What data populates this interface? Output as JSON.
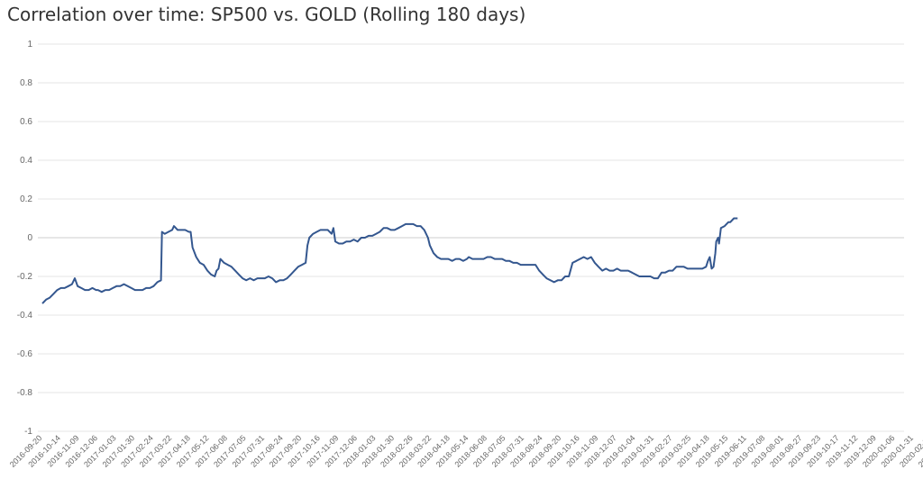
{
  "title": "Correlation over time: SP500 vs. GOLD (Rolling 180 days)",
  "colors": {
    "series": "#34578f",
    "grid": "#e6e6e6",
    "text": "#666666"
  },
  "chart_data": {
    "type": "line",
    "title": "Correlation over time: SP500 vs. GOLD (Rolling 180 days)",
    "xlabel": "",
    "ylabel": "",
    "ylim": [
      -1,
      1
    ],
    "yticks": [
      1,
      0.8,
      0.6,
      0.4,
      0.2,
      0,
      -0.2,
      -0.4,
      -0.6,
      -0.8,
      -1
    ],
    "ytick_labels": [
      "1",
      "0.8",
      "0.6",
      "0.4",
      "0.2",
      "0",
      "-0.2",
      "-0.4",
      "-0.6",
      "-0.8",
      "-1"
    ],
    "grid": true,
    "legend": "none",
    "categories": [
      "2016-09-20",
      "2016-10-14",
      "2016-11-09",
      "2016-12-06",
      "2017-01-03",
      "2017-01-30",
      "2017-02-24",
      "2017-03-22",
      "2017-04-18",
      "2017-05-12",
      "2017-06-08",
      "2017-07-05",
      "2017-07-31",
      "2017-08-24",
      "2017-09-20",
      "2017-10-16",
      "2017-11-09",
      "2017-12-06",
      "2018-01-03",
      "2018-01-30",
      "2018-02-26",
      "2018-03-22",
      "2018-04-18",
      "2018-05-14",
      "2018-06-08",
      "2018-07-05",
      "2018-07-31",
      "2018-08-24",
      "2018-09-20",
      "2018-10-16",
      "2018-11-09",
      "2018-12-07",
      "2019-01-04",
      "2019-01-31",
      "2019-02-27",
      "2019-03-25",
      "2019-04-18",
      "2019-05-15",
      "2019-06-11",
      "2019-07-08",
      "2019-08-01",
      "2019-08-27",
      "2019-09-23",
      "2019-10-17",
      "2019-11-12",
      "2019-12-09",
      "2020-01-06",
      "2020-01-31",
      "2020-02-27",
      "2020-03-24"
    ],
    "series": [
      {
        "color": "#34578f",
        "points": [
          [
            0,
            -0.34
          ],
          [
            0.2,
            -0.32
          ],
          [
            0.4,
            -0.31
          ],
          [
            0.6,
            -0.29
          ],
          [
            0.8,
            -0.27
          ],
          [
            1.0,
            -0.26
          ],
          [
            1.2,
            -0.26
          ],
          [
            1.4,
            -0.25
          ],
          [
            1.6,
            -0.24
          ],
          [
            1.75,
            -0.21
          ],
          [
            1.9,
            -0.25
          ],
          [
            2.1,
            -0.26
          ],
          [
            2.3,
            -0.27
          ],
          [
            2.5,
            -0.27
          ],
          [
            2.7,
            -0.26
          ],
          [
            2.9,
            -0.27
          ],
          [
            3.0,
            -0.27
          ],
          [
            3.2,
            -0.28
          ],
          [
            3.4,
            -0.27
          ],
          [
            3.6,
            -0.27
          ],
          [
            3.8,
            -0.26
          ],
          [
            4.0,
            -0.25
          ],
          [
            4.2,
            -0.25
          ],
          [
            4.4,
            -0.24
          ],
          [
            4.6,
            -0.25
          ],
          [
            4.8,
            -0.26
          ],
          [
            5.0,
            -0.27
          ],
          [
            5.2,
            -0.27
          ],
          [
            5.4,
            -0.27
          ],
          [
            5.6,
            -0.26
          ],
          [
            5.8,
            -0.26
          ],
          [
            6.0,
            -0.25
          ],
          [
            6.2,
            -0.23
          ],
          [
            6.4,
            -0.22
          ],
          [
            6.45,
            0.03
          ],
          [
            6.6,
            0.02
          ],
          [
            6.8,
            0.03
          ],
          [
            7.0,
            0.04
          ],
          [
            7.1,
            0.06
          ],
          [
            7.3,
            0.04
          ],
          [
            7.5,
            0.04
          ],
          [
            7.7,
            0.04
          ],
          [
            7.9,
            0.03
          ],
          [
            8.0,
            0.03
          ],
          [
            8.1,
            -0.05
          ],
          [
            8.3,
            -0.1
          ],
          [
            8.5,
            -0.13
          ],
          [
            8.7,
            -0.14
          ],
          [
            8.9,
            -0.17
          ],
          [
            9.1,
            -0.19
          ],
          [
            9.3,
            -0.2
          ],
          [
            9.4,
            -0.17
          ],
          [
            9.5,
            -0.16
          ],
          [
            9.6,
            -0.11
          ],
          [
            9.8,
            -0.13
          ],
          [
            10.0,
            -0.14
          ],
          [
            10.2,
            -0.15
          ],
          [
            10.4,
            -0.17
          ],
          [
            10.6,
            -0.19
          ],
          [
            10.8,
            -0.21
          ],
          [
            11.0,
            -0.22
          ],
          [
            11.2,
            -0.21
          ],
          [
            11.4,
            -0.22
          ],
          [
            11.6,
            -0.21
          ],
          [
            11.8,
            -0.21
          ],
          [
            12.0,
            -0.21
          ],
          [
            12.2,
            -0.2
          ],
          [
            12.4,
            -0.21
          ],
          [
            12.6,
            -0.23
          ],
          [
            12.8,
            -0.22
          ],
          [
            13.0,
            -0.22
          ],
          [
            13.2,
            -0.21
          ],
          [
            13.4,
            -0.19
          ],
          [
            13.6,
            -0.17
          ],
          [
            13.8,
            -0.15
          ],
          [
            14.0,
            -0.14
          ],
          [
            14.2,
            -0.13
          ],
          [
            14.3,
            -0.04
          ],
          [
            14.4,
            0.0
          ],
          [
            14.6,
            0.02
          ],
          [
            14.8,
            0.03
          ],
          [
            15.0,
            0.04
          ],
          [
            15.2,
            0.04
          ],
          [
            15.4,
            0.04
          ],
          [
            15.6,
            0.02
          ],
          [
            15.7,
            0.05
          ],
          [
            15.8,
            -0.02
          ],
          [
            16.0,
            -0.03
          ],
          [
            16.2,
            -0.03
          ],
          [
            16.4,
            -0.02
          ],
          [
            16.6,
            -0.02
          ],
          [
            16.8,
            -0.01
          ],
          [
            17.0,
            -0.02
          ],
          [
            17.2,
            0.0
          ],
          [
            17.4,
            0.0
          ],
          [
            17.6,
            0.01
          ],
          [
            17.8,
            0.01
          ],
          [
            18.0,
            0.02
          ],
          [
            18.2,
            0.03
          ],
          [
            18.4,
            0.05
          ],
          [
            18.6,
            0.05
          ],
          [
            18.8,
            0.04
          ],
          [
            19.0,
            0.04
          ],
          [
            19.2,
            0.05
          ],
          [
            19.4,
            0.06
          ],
          [
            19.6,
            0.07
          ],
          [
            19.8,
            0.07
          ],
          [
            20.0,
            0.07
          ],
          [
            20.2,
            0.06
          ],
          [
            20.4,
            0.06
          ],
          [
            20.6,
            0.04
          ],
          [
            20.8,
            0.0
          ],
          [
            20.9,
            -0.04
          ],
          [
            21.1,
            -0.08
          ],
          [
            21.3,
            -0.1
          ],
          [
            21.5,
            -0.11
          ],
          [
            21.7,
            -0.11
          ],
          [
            21.9,
            -0.11
          ],
          [
            22.1,
            -0.12
          ],
          [
            22.3,
            -0.11
          ],
          [
            22.5,
            -0.11
          ],
          [
            22.7,
            -0.12
          ],
          [
            22.9,
            -0.11
          ],
          [
            23.0,
            -0.1
          ],
          [
            23.2,
            -0.11
          ],
          [
            23.4,
            -0.11
          ],
          [
            23.6,
            -0.11
          ],
          [
            23.8,
            -0.11
          ],
          [
            24.0,
            -0.1
          ],
          [
            24.2,
            -0.1
          ],
          [
            24.4,
            -0.11
          ],
          [
            24.6,
            -0.11
          ],
          [
            24.8,
            -0.11
          ],
          [
            25.0,
            -0.12
          ],
          [
            25.2,
            -0.12
          ],
          [
            25.4,
            -0.13
          ],
          [
            25.6,
            -0.13
          ],
          [
            25.8,
            -0.14
          ],
          [
            26.0,
            -0.14
          ],
          [
            26.2,
            -0.14
          ],
          [
            26.4,
            -0.14
          ],
          [
            26.6,
            -0.14
          ],
          [
            26.8,
            -0.17
          ],
          [
            27.0,
            -0.19
          ],
          [
            27.2,
            -0.21
          ],
          [
            27.4,
            -0.22
          ],
          [
            27.6,
            -0.23
          ],
          [
            27.8,
            -0.22
          ],
          [
            28.0,
            -0.22
          ],
          [
            28.2,
            -0.2
          ],
          [
            28.4,
            -0.2
          ],
          [
            28.6,
            -0.13
          ],
          [
            28.8,
            -0.12
          ],
          [
            29.0,
            -0.11
          ],
          [
            29.2,
            -0.1
          ],
          [
            29.4,
            -0.11
          ],
          [
            29.6,
            -0.1
          ],
          [
            29.8,
            -0.13
          ],
          [
            30.0,
            -0.15
          ],
          [
            30.2,
            -0.17
          ],
          [
            30.4,
            -0.16
          ],
          [
            30.6,
            -0.17
          ],
          [
            30.8,
            -0.17
          ],
          [
            31.0,
            -0.16
          ],
          [
            31.2,
            -0.17
          ],
          [
            31.4,
            -0.17
          ],
          [
            31.6,
            -0.17
          ],
          [
            31.8,
            -0.18
          ],
          [
            32.0,
            -0.19
          ],
          [
            32.2,
            -0.2
          ],
          [
            32.4,
            -0.2
          ],
          [
            32.6,
            -0.2
          ],
          [
            32.8,
            -0.2
          ],
          [
            33.0,
            -0.21
          ],
          [
            33.2,
            -0.21
          ],
          [
            33.4,
            -0.18
          ],
          [
            33.6,
            -0.18
          ],
          [
            33.8,
            -0.17
          ],
          [
            34.0,
            -0.17
          ],
          [
            34.2,
            -0.15
          ],
          [
            34.4,
            -0.15
          ],
          [
            34.6,
            -0.15
          ],
          [
            34.8,
            -0.16
          ],
          [
            35.0,
            -0.16
          ],
          [
            35.2,
            -0.16
          ],
          [
            35.4,
            -0.16
          ],
          [
            35.6,
            -0.16
          ],
          [
            35.8,
            -0.15
          ],
          [
            35.9,
            -0.12
          ],
          [
            36.0,
            -0.1
          ],
          [
            36.1,
            -0.16
          ],
          [
            36.2,
            -0.15
          ],
          [
            36.3,
            -0.08
          ],
          [
            36.35,
            -0.02
          ],
          [
            36.45,
            0.0
          ],
          [
            36.5,
            -0.03
          ],
          [
            36.6,
            0.05
          ],
          [
            36.8,
            0.06
          ],
          [
            37.0,
            0.08
          ],
          [
            37.1,
            0.08
          ],
          [
            37.3,
            0.1
          ],
          [
            37.5,
            0.1
          ]
        ]
      }
    ]
  }
}
